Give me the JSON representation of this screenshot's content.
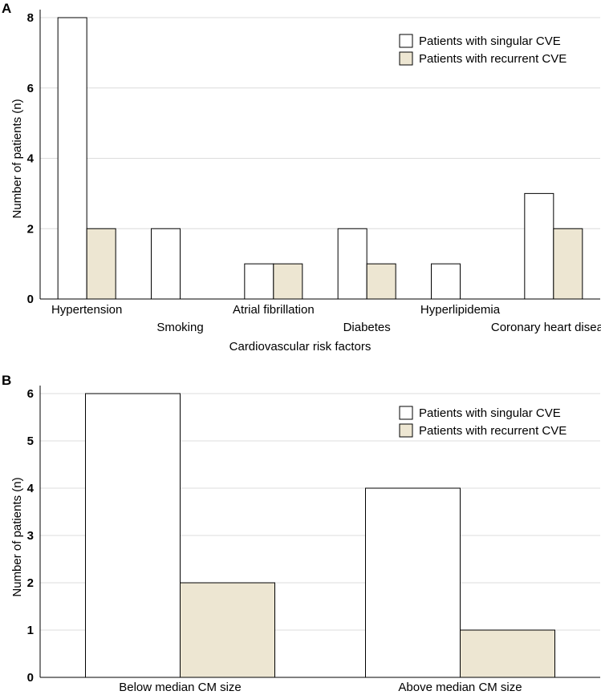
{
  "chart_data": [
    {
      "panel": "A",
      "type": "bar",
      "title": "",
      "xlabel": "Cardiovascular risk factors",
      "ylabel": "Number of patients (n)",
      "ylim": [
        0,
        8
      ],
      "yticks": [
        0,
        2,
        4,
        6,
        8
      ],
      "grid": true,
      "legend_position": "top-right",
      "categories": [
        "Hypertension",
        "Smoking",
        "Atrial fibrillation",
        "Diabetes",
        "Hyperlipidemia",
        "Coronary heart disease"
      ],
      "series": [
        {
          "name": "Patients with singular CVE",
          "color": "#ffffff",
          "values": [
            8,
            2,
            1,
            2,
            1,
            3
          ]
        },
        {
          "name": "Patients with recurrent CVE",
          "color": "#ede6d2",
          "values": [
            2,
            0,
            1,
            1,
            0,
            2
          ]
        }
      ]
    },
    {
      "panel": "B",
      "type": "bar",
      "title": "",
      "xlabel": "",
      "ylabel": "Number of patients (n)",
      "ylim": [
        0,
        6
      ],
      "yticks": [
        0,
        1,
        2,
        3,
        4,
        5,
        6
      ],
      "grid": true,
      "legend_position": "top-right",
      "categories": [
        "Below median CM size",
        "Above median CM size"
      ],
      "series": [
        {
          "name": "Patients with singular CVE",
          "color": "#ffffff",
          "values": [
            6,
            4
          ]
        },
        {
          "name": "Patients with recurrent CVE",
          "color": "#ede6d2",
          "values": [
            2,
            1
          ]
        }
      ]
    }
  ]
}
